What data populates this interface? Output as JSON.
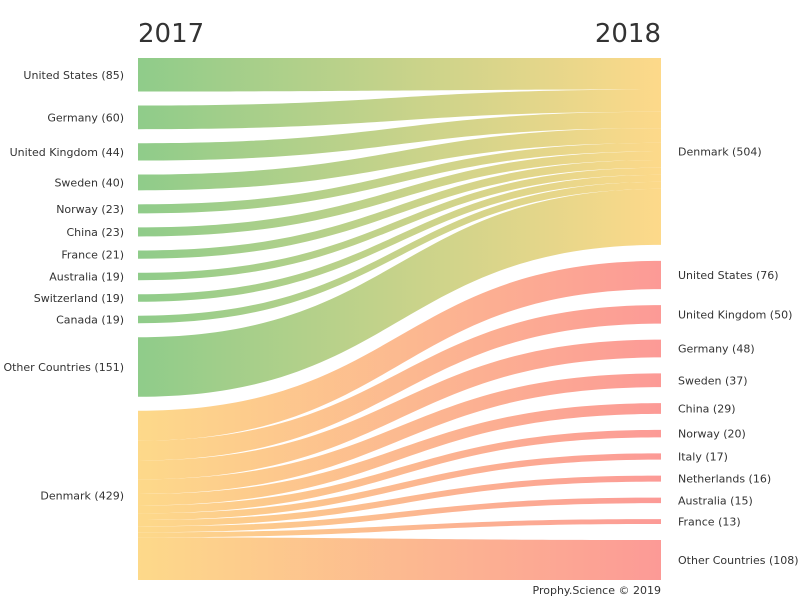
{
  "chart_data": {
    "type": "sankey",
    "left_year": "2017",
    "right_year": "2018",
    "credit": "Prophy.Science © 2019",
    "colors": {
      "green": "#8fcc8a",
      "orange": "#fdd98a",
      "red": "#fc9a96"
    },
    "left_nodes": [
      {
        "label": "United States (85)",
        "value": 85,
        "color_key": "green"
      },
      {
        "label": "Germany (60)",
        "value": 60,
        "color_key": "green"
      },
      {
        "label": "United Kingdom (44)",
        "value": 44,
        "color_key": "green"
      },
      {
        "label": "Sweden (40)",
        "value": 40,
        "color_key": "green"
      },
      {
        "label": "Norway (23)",
        "value": 23,
        "color_key": "green"
      },
      {
        "label": "China (23)",
        "value": 23,
        "color_key": "green"
      },
      {
        "label": "France (21)",
        "value": 21,
        "color_key": "green"
      },
      {
        "label": "Australia (19)",
        "value": 19,
        "color_key": "green"
      },
      {
        "label": "Switzerland (19)",
        "value": 19,
        "color_key": "green"
      },
      {
        "label": "Canada (19)",
        "value": 19,
        "color_key": "green"
      },
      {
        "label": "Other Countries (151)",
        "value": 151,
        "color_key": "green"
      },
      {
        "label": "Denmark (429)",
        "value": 429,
        "color_key": "orange"
      }
    ],
    "right_nodes": [
      {
        "label": "Denmark (504)",
        "value": 504,
        "color_key": "orange"
      },
      {
        "label": "United States (76)",
        "value": 76,
        "color_key": "red"
      },
      {
        "label": "United Kingdom (50)",
        "value": 50,
        "color_key": "red"
      },
      {
        "label": "Germany (48)",
        "value": 48,
        "color_key": "red"
      },
      {
        "label": "Sweden (37)",
        "value": 37,
        "color_key": "red"
      },
      {
        "label": "China (29)",
        "value": 29,
        "color_key": "red"
      },
      {
        "label": "Norway (20)",
        "value": 20,
        "color_key": "red"
      },
      {
        "label": "Italy (17)",
        "value": 17,
        "color_key": "red"
      },
      {
        "label": "Netherlands (16)",
        "value": 16,
        "color_key": "red"
      },
      {
        "label": "Australia (15)",
        "value": 15,
        "color_key": "red"
      },
      {
        "label": "France (13)",
        "value": 13,
        "color_key": "red"
      },
      {
        "label": "Other Countries (108)",
        "value": 108,
        "color_key": "red"
      }
    ]
  }
}
